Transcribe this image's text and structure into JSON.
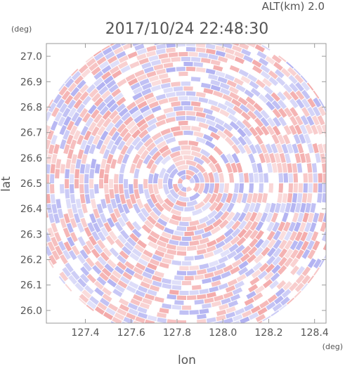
{
  "chart_data": {
    "type": "heatmap",
    "title": "2017/10/24 22:48:30",
    "subtitle": "ALT(km) 2.0",
    "xlabel": "lon",
    "ylabel": "lat",
    "xunit": "(deg)",
    "yunit": "(deg)",
    "xlim": [
      127.23,
      128.45
    ],
    "ylim": [
      25.95,
      27.05
    ],
    "xticks": [
      127.4,
      127.6,
      127.8,
      128.0,
      128.2,
      128.4
    ],
    "xtick_labels": [
      "127.4",
      "127.6",
      "127.8",
      "128.0",
      "128.2",
      "128.4"
    ],
    "yticks": [
      26.0,
      26.1,
      26.2,
      26.3,
      26.4,
      26.5,
      26.6,
      26.7,
      26.8,
      26.9,
      27.0
    ],
    "ytick_labels": [
      "26.0",
      "26.1",
      "26.2",
      "26.3",
      "26.4",
      "26.5",
      "26.6",
      "26.7",
      "26.8",
      "26.9",
      "27.0"
    ],
    "center": {
      "lon": 127.84,
      "lat": 26.5
    },
    "colors": {
      "positive": "#f2a0a0",
      "negative": "#a8a8f0",
      "frame": "#9a9a9a"
    },
    "grid": false
  }
}
